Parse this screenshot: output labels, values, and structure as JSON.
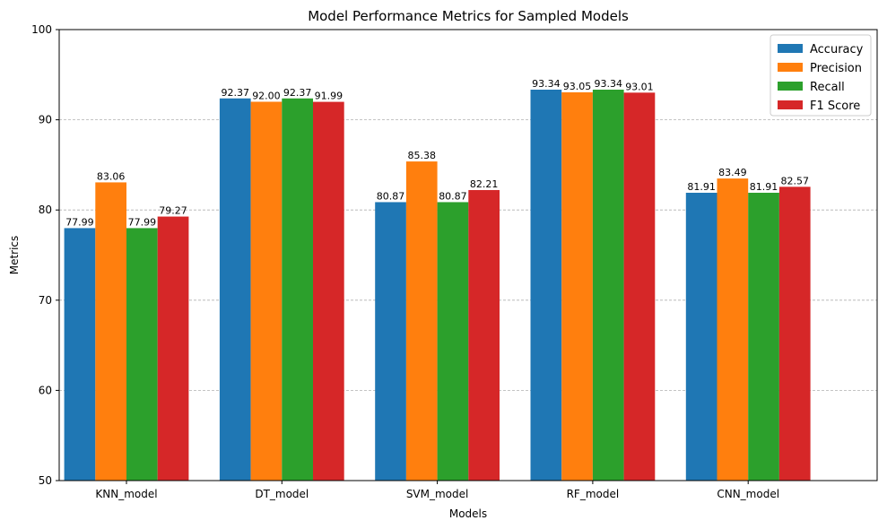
{
  "chart_data": {
    "type": "bar",
    "title": "Model Performance Metrics for Sampled Models",
    "xlabel": "Models",
    "ylabel": "Metrics",
    "ylim": [
      50,
      100
    ],
    "yticks": [
      50,
      60,
      70,
      80,
      90,
      100
    ],
    "grid": "y-dashed",
    "legend_position": "top-right",
    "categories": [
      "KNN_model",
      "DT_model",
      "SVM_model",
      "RF_model",
      "CNN_model"
    ],
    "series": [
      {
        "name": "Accuracy",
        "color": "#1f77b4",
        "values": [
          77.99,
          92.37,
          80.87,
          93.34,
          81.91
        ]
      },
      {
        "name": "Precision",
        "color": "#ff7f0e",
        "values": [
          83.06,
          92.0,
          85.38,
          93.05,
          83.49
        ]
      },
      {
        "name": "Recall",
        "color": "#2ca02c",
        "values": [
          77.99,
          92.37,
          80.87,
          93.34,
          81.91
        ]
      },
      {
        "name": "F1 Score",
        "color": "#d62728",
        "values": [
          79.27,
          91.99,
          82.21,
          93.01,
          82.57
        ]
      }
    ]
  }
}
